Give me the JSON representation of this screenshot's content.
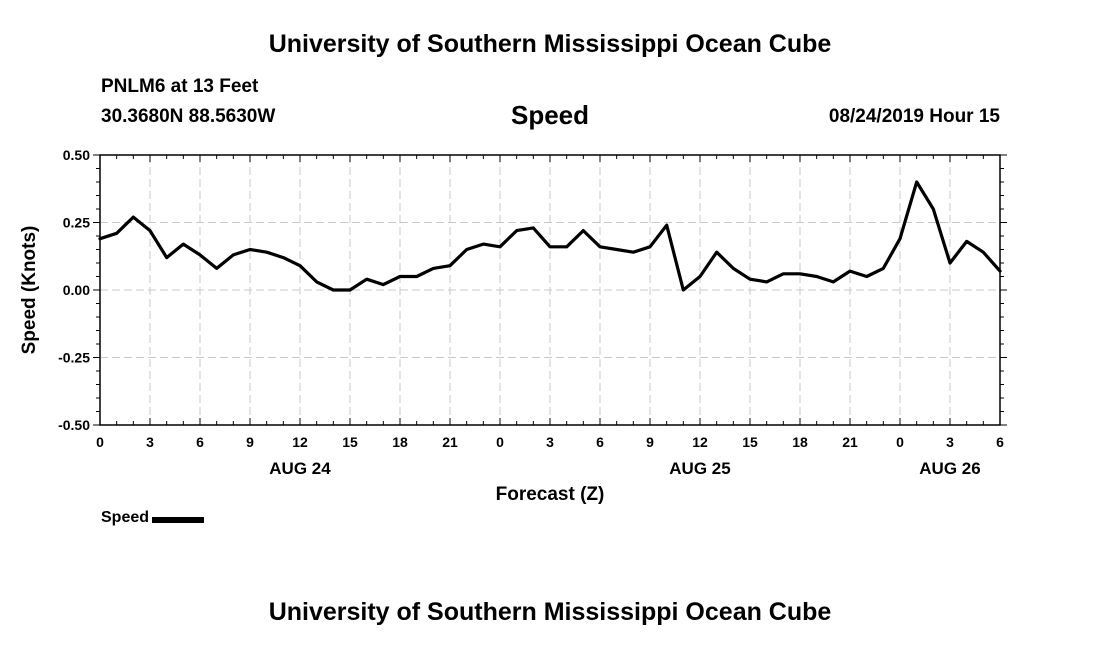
{
  "header": {
    "title": "University of Southern Mississippi Ocean Cube",
    "station": "PNLM6 at 13 Feet",
    "coords": "30.3680N 88.5630W",
    "issued": "08/24/2019 Hour 15"
  },
  "footer": {
    "title": "University of Southern Mississippi Ocean Cube"
  },
  "legend": {
    "label": "Speed"
  },
  "chart_data": {
    "type": "line",
    "title": "Speed",
    "xlabel": "Forecast (Z)",
    "ylabel": "Speed (Knots)",
    "ylim": [
      -0.5,
      0.5
    ],
    "xlim": [
      0,
      54
    ],
    "yticks": [
      "0.50",
      "0.25",
      "0.00",
      "-0.25",
      "-0.50"
    ],
    "ytick_values": [
      0.5,
      0.25,
      0,
      -0.25,
      -0.5
    ],
    "xtick_labels": [
      "0",
      "3",
      "6",
      "9",
      "12",
      "15",
      "18",
      "21",
      "0",
      "3",
      "6",
      "9",
      "12",
      "15",
      "18",
      "21",
      "0",
      "3",
      "6"
    ],
    "day_labels": [
      {
        "x": 12,
        "label": "AUG 24"
      },
      {
        "x": 36,
        "label": "AUG 25"
      },
      {
        "x": 51,
        "label": "AUG 26"
      }
    ],
    "grid": true,
    "line_color": "#000000",
    "series": [
      {
        "name": "Speed",
        "x": [
          0,
          1,
          2,
          3,
          4,
          5,
          6,
          7,
          8,
          9,
          10,
          11,
          12,
          13,
          14,
          15,
          16,
          17,
          18,
          19,
          20,
          21,
          22,
          23,
          24,
          25,
          26,
          27,
          28,
          29,
          30,
          31,
          32,
          33,
          34,
          35,
          36,
          37,
          38,
          39,
          40,
          41,
          42,
          43,
          44,
          45,
          46,
          47,
          48,
          49,
          50,
          51,
          52,
          53,
          54
        ],
        "values": [
          0.19,
          0.21,
          0.27,
          0.22,
          0.12,
          0.17,
          0.13,
          0.08,
          0.13,
          0.15,
          0.14,
          0.12,
          0.09,
          0.03,
          0.0,
          0.0,
          0.04,
          0.02,
          0.05,
          0.05,
          0.08,
          0.09,
          0.15,
          0.17,
          0.16,
          0.22,
          0.23,
          0.16,
          0.16,
          0.22,
          0.16,
          0.15,
          0.14,
          0.16,
          0.24,
          0.0,
          0.05,
          0.14,
          0.08,
          0.04,
          0.03,
          0.06,
          0.06,
          0.05,
          0.03,
          0.07,
          0.05,
          0.08,
          0.19,
          0.4,
          0.3,
          0.1,
          0.18,
          0.14,
          0.07
        ]
      }
    ]
  }
}
